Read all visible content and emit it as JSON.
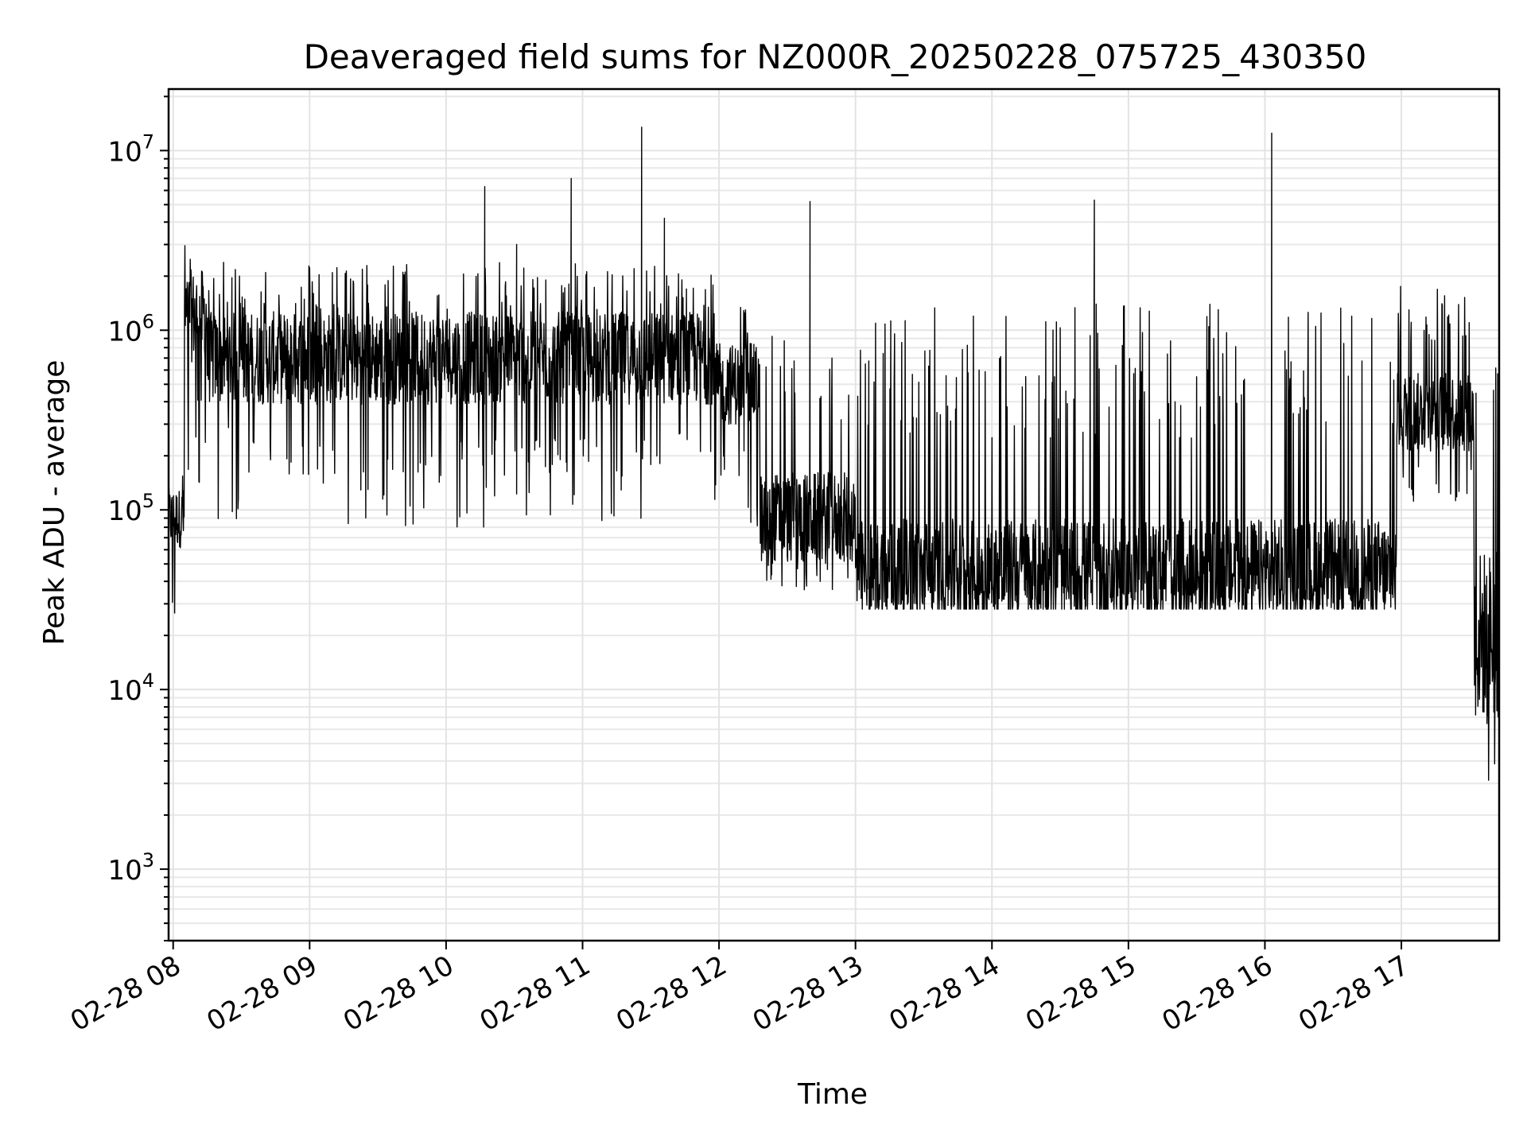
{
  "chart_data": {
    "type": "line",
    "title": "Deaveraged field sums for NZ000R_20250228_075725_430350",
    "xlabel": "Time",
    "ylabel": "Peak ADU - average",
    "yscale": "log",
    "ylim": [
      400,
      22000000
    ],
    "xlim": [
      "2025-02-28 07:58",
      "2025-02-28 17:43"
    ],
    "grid": true,
    "legend": "none",
    "line_color": "#000000",
    "x_tick_labels": [
      "02-28 08",
      "02-28 09",
      "02-28 10",
      "02-28 11",
      "02-28 12",
      "02-28 13",
      "02-28 14",
      "02-28 15",
      "02-28 16",
      "02-28 17"
    ],
    "x_ticks": [
      "2025-02-28 08:00",
      "2025-02-28 09:00",
      "2025-02-28 10:00",
      "2025-02-28 11:00",
      "2025-02-28 12:00",
      "2025-02-28 13:00",
      "2025-02-28 14:00",
      "2025-02-28 15:00",
      "2025-02-28 16:00",
      "2025-02-28 17:00"
    ],
    "y_ticks": [
      {
        "value": 1000,
        "base": "10",
        "exp": "3"
      },
      {
        "value": 10000,
        "base": "10",
        "exp": "4"
      },
      {
        "value": 100000,
        "base": "10",
        "exp": "5"
      },
      {
        "value": 1000000,
        "base": "10",
        "exp": "6"
      },
      {
        "value": 10000000,
        "base": "10",
        "exp": "7"
      }
    ],
    "series": [
      {
        "values_envelope": [
          {
            "from": "2025-02-28 07:58",
            "to": "2025-02-28 08:05",
            "low": 20000,
            "high": 180000,
            "typical": 90000
          },
          {
            "from": "2025-02-28 08:05",
            "to": "2025-02-28 08:15",
            "low": 120000,
            "high": 3600000,
            "typical": 1200000
          },
          {
            "from": "2025-02-28 08:15",
            "to": "2025-02-28 11:58",
            "low": 80000,
            "high": 2400000,
            "typical": 700000
          },
          {
            "from": "2025-02-28 11:58",
            "to": "2025-02-28 12:18",
            "low": 70000,
            "high": 1400000,
            "typical": 500000
          },
          {
            "from": "2025-02-28 12:18",
            "to": "2025-02-28 13:00",
            "low": 35000,
            "high": 1000000,
            "typical": 90000
          },
          {
            "from": "2025-02-28 13:00",
            "to": "2025-02-28 16:58",
            "low": 28000,
            "high": 1400000,
            "typical": 45000
          },
          {
            "from": "2025-02-28 16:58",
            "to": "2025-02-28 17:32",
            "low": 100000,
            "high": 1800000,
            "typical": 350000
          },
          {
            "from": "2025-02-28 17:32",
            "to": "2025-02-28 17:43",
            "low": 1700,
            "high": 900000,
            "typical": 20000
          }
        ],
        "spikes": [
          {
            "x": "2025-02-28 10:17",
            "y": 6300000
          },
          {
            "x": "2025-02-28 10:31",
            "y": 3000000
          },
          {
            "x": "2025-02-28 10:55",
            "y": 7000000
          },
          {
            "x": "2025-02-28 11:26",
            "y": 13500000
          },
          {
            "x": "2025-02-28 11:36",
            "y": 4200000
          },
          {
            "x": "2025-02-28 12:40",
            "y": 5200000
          },
          {
            "x": "2025-02-28 14:45",
            "y": 5300000
          },
          {
            "x": "2025-02-28 16:03",
            "y": 12500000
          }
        ]
      }
    ]
  }
}
